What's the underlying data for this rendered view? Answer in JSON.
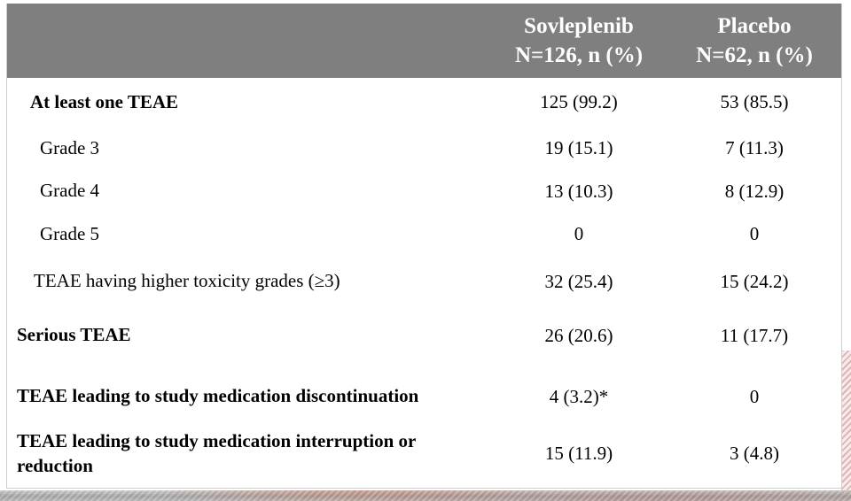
{
  "slide": {
    "header_bg": "#7f7f7f",
    "stripe_pink": "#e0b4b4",
    "footer_band_gray": "#a8a8a8"
  },
  "table": {
    "columns": [
      {
        "line1": "Sovleplenib",
        "line2": "N=126, n (%)"
      },
      {
        "line1": "Placebo",
        "line2": "N=62, n (%)"
      }
    ],
    "rows": [
      {
        "label": "At least one TEAE",
        "bold": true,
        "indent": 1,
        "values": [
          "125 (99.2)",
          "53 (85.5)"
        ]
      },
      {
        "label": "Grade 3",
        "bold": false,
        "indent": 3,
        "values": [
          "19 (15.1)",
          "7 (11.3)"
        ]
      },
      {
        "label": "Grade 4",
        "bold": false,
        "indent": 3,
        "values": [
          "13 (10.3)",
          "8 (12.9)"
        ]
      },
      {
        "label": "Grade 5",
        "bold": false,
        "indent": 3,
        "values": [
          "0",
          "0"
        ]
      },
      {
        "label": "TEAE having higher toxicity grades (≥3)",
        "bold": false,
        "indent": 2,
        "values": [
          "32 (25.4)",
          "15 (24.2)"
        ]
      },
      {
        "label": "Serious TEAE",
        "bold": true,
        "indent": 0,
        "values": [
          "26 (20.6)",
          "11 (17.7)"
        ]
      },
      {
        "label": "TEAE leading to study medication discontinuation",
        "bold": true,
        "indent": 0,
        "values": [
          "4 (3.2)*",
          "0"
        ]
      },
      {
        "label": "TEAE leading to study medication interruption or reduction",
        "bold": true,
        "indent": 0,
        "values": [
          "15 (11.9)",
          "3 (4.8)"
        ]
      }
    ]
  }
}
